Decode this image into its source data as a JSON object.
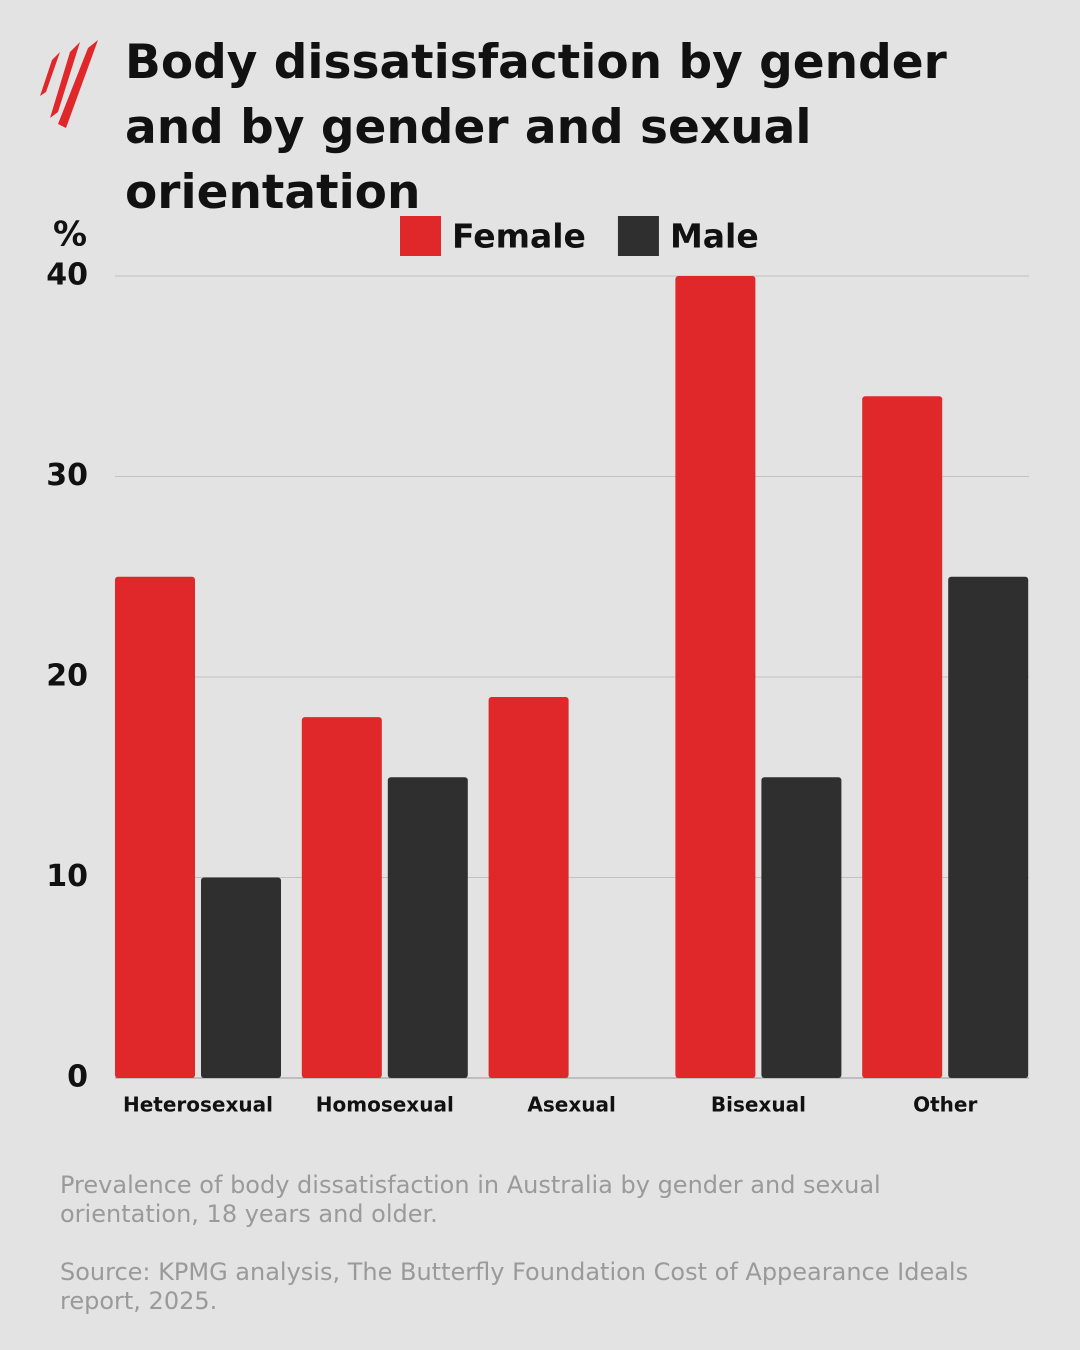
{
  "chart_data": {
    "type": "bar",
    "title": "Body dissatisfaction by gender and by gender and sexual orientation",
    "y_label": "%",
    "categories": [
      "Heterosexual",
      "Homosexual",
      "Asexual",
      "Bisexual",
      "Other"
    ],
    "series": [
      {
        "name": "Female",
        "color": "#e0272a",
        "values": [
          25,
          18,
          19,
          40,
          34
        ]
      },
      {
        "name": "Male",
        "color": "#2f2f2f",
        "values": [
          10,
          15,
          null,
          15,
          25
        ]
      }
    ],
    "ylim": [
      0,
      40
    ],
    "yticks": [
      0,
      10,
      20,
      30,
      40
    ],
    "grid": true,
    "legend": "top",
    "notes": [
      "Prevalence of body dissatisfaction in Australia by gender and sexual orientation, 18 years and older.",
      "Source: KPMG analysis, The Butterfly Foundation Cost of Appearance Ideals report, 2025."
    ]
  }
}
